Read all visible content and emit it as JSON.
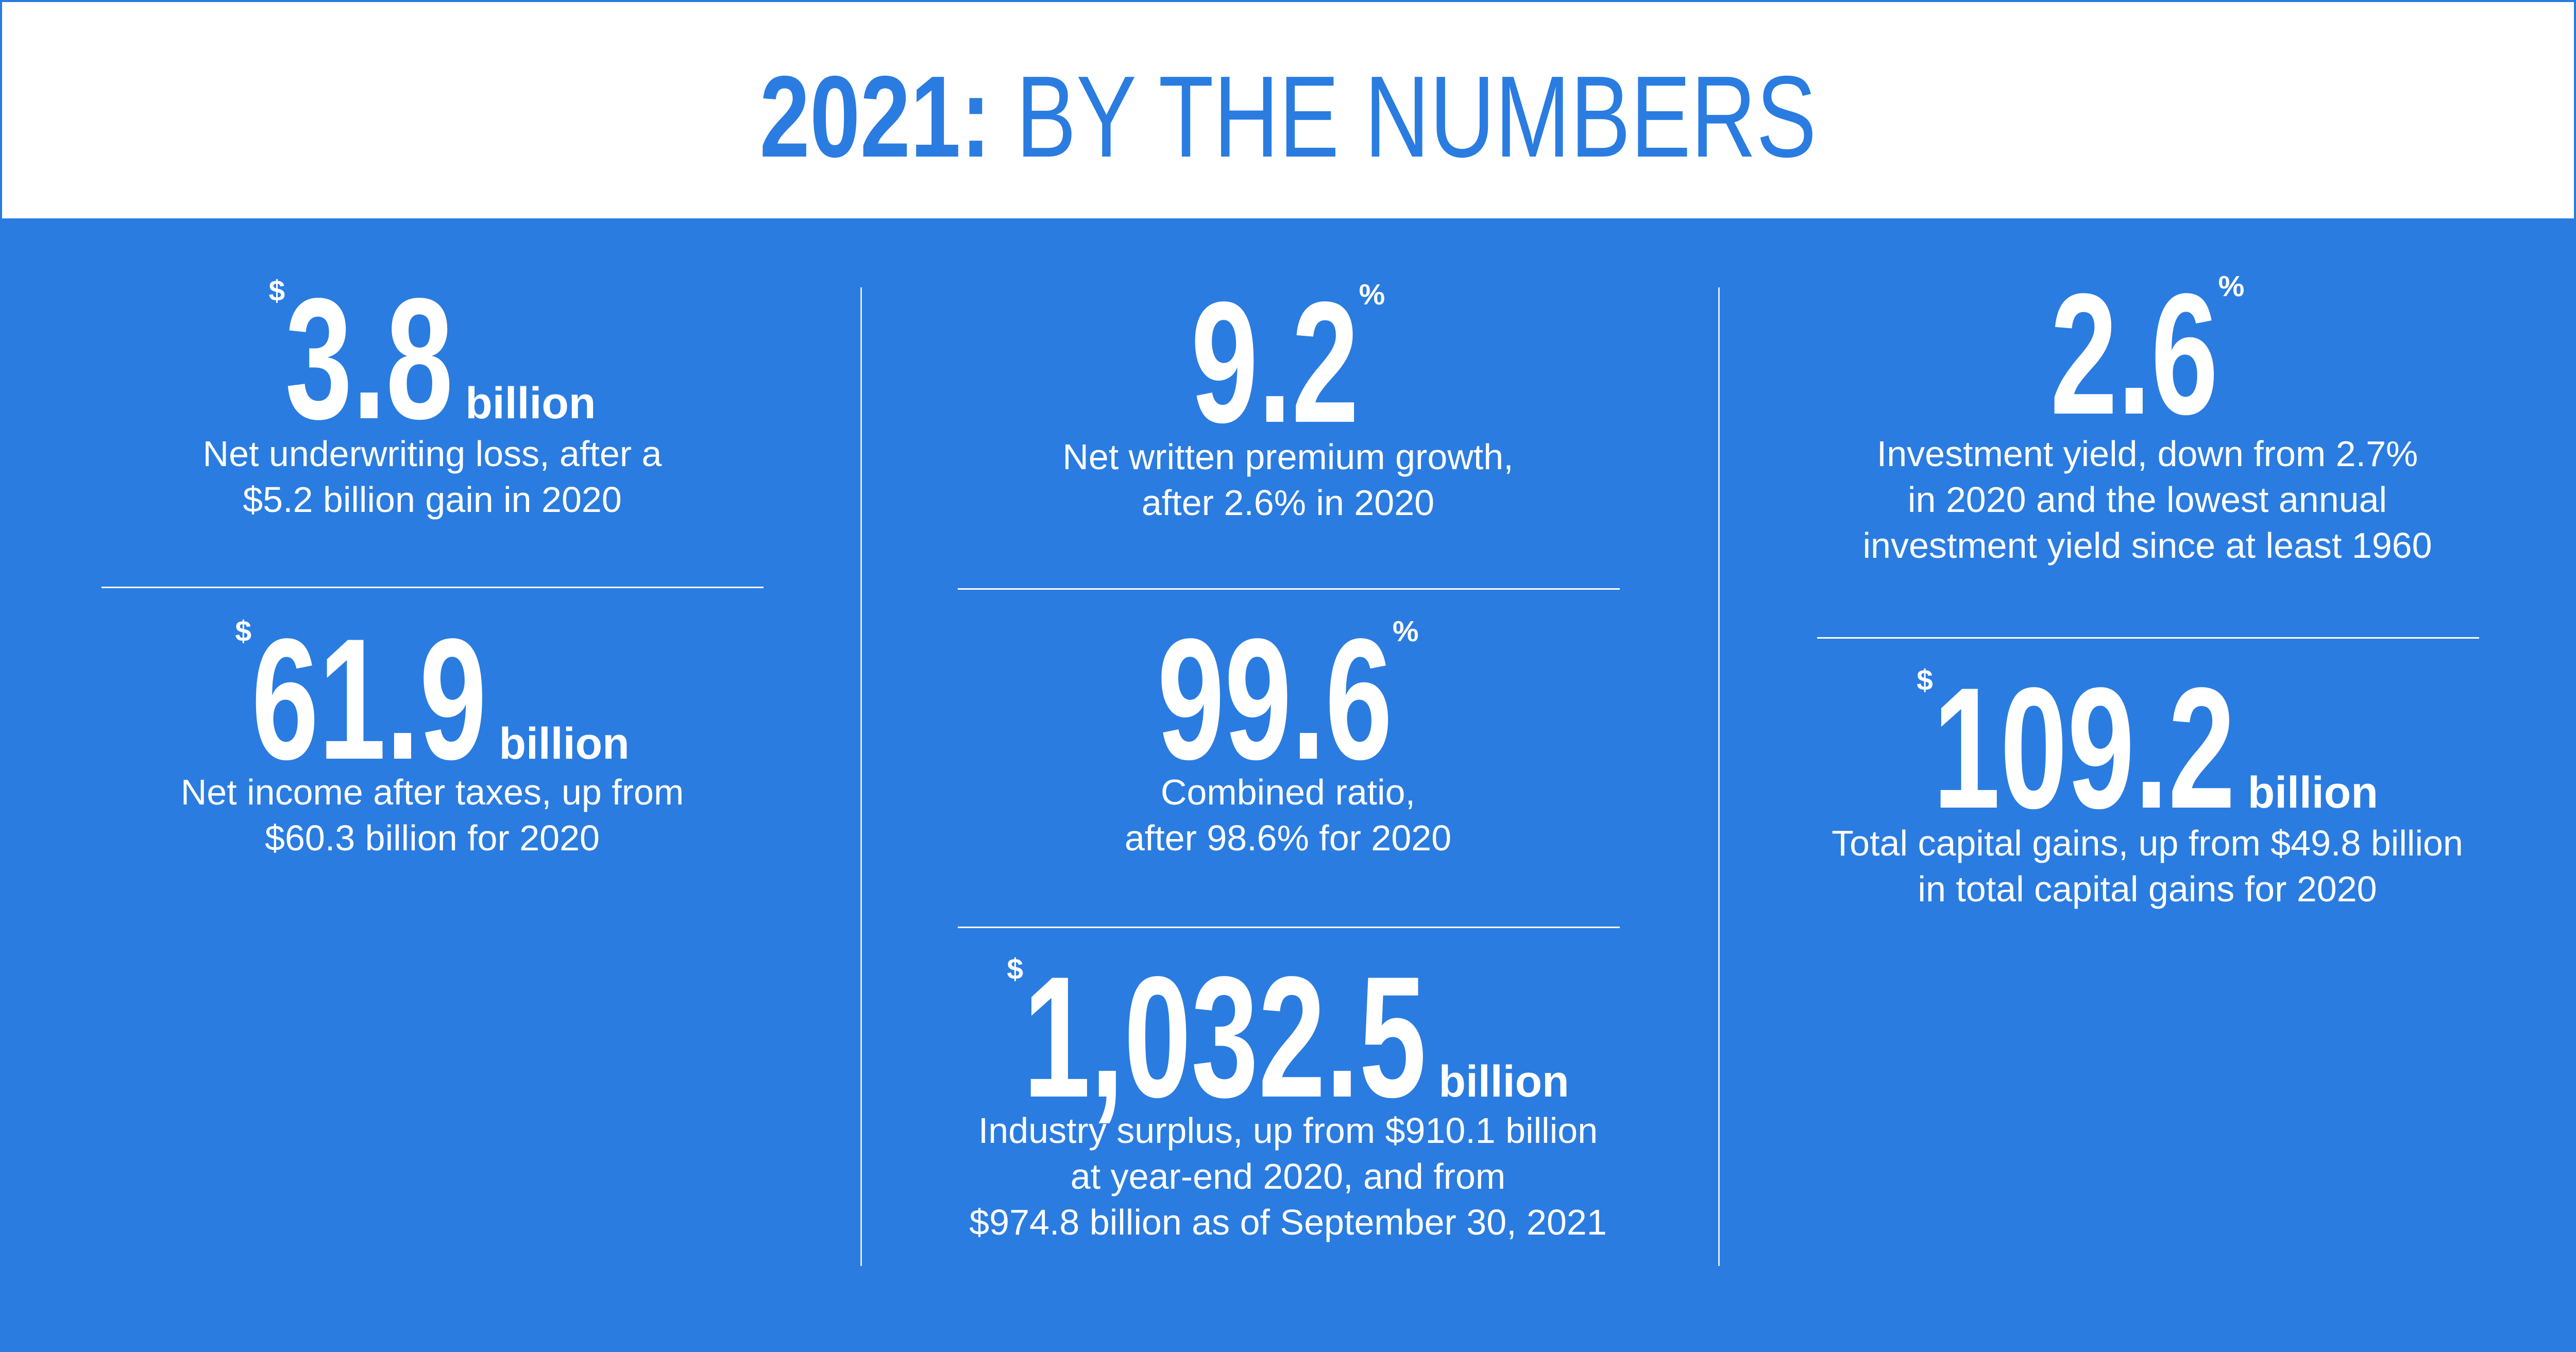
{
  "header": {
    "title_bold": "2021:",
    "title_rest": "BY THE NUMBERS"
  },
  "stats": [
    {
      "prefix": "$",
      "value": "3.8",
      "unit": "billion",
      "description": [
        "Net underwriting loss, after a",
        "$5.2 billion gain in 2020"
      ]
    },
    {
      "prefix": "$",
      "value": "61.9",
      "unit": "billion",
      "description": [
        "Net income after taxes, up from",
        "$60.3 billion for 2020"
      ]
    },
    {
      "value": "9.2",
      "superscript": "%",
      "description": [
        "Net written premium growth,",
        "after 2.6% in 2020"
      ]
    },
    {
      "value": "99.6",
      "superscript": "%",
      "description": [
        "Combined ratio,",
        "after 98.6% for 2020"
      ]
    },
    {
      "prefix": "$",
      "value": "1,032.5",
      "unit": "billion",
      "description": [
        "Industry surplus, up from $910.1 billion",
        "at year-end 2020, and from",
        "$974.8 billion as of September 30, 2021"
      ]
    },
    {
      "value": "2.6",
      "superscript": "%",
      "description": [
        "Investment yield, down from 2.7%",
        "in 2020 and the lowest annual",
        "investment yield since at least 1960"
      ]
    },
    {
      "prefix": "$",
      "value": "109.2",
      "unit": "billion",
      "description": [
        "Total capital gains, up from $49.8 billion",
        "in total capital gains for 2020"
      ]
    }
  ]
}
